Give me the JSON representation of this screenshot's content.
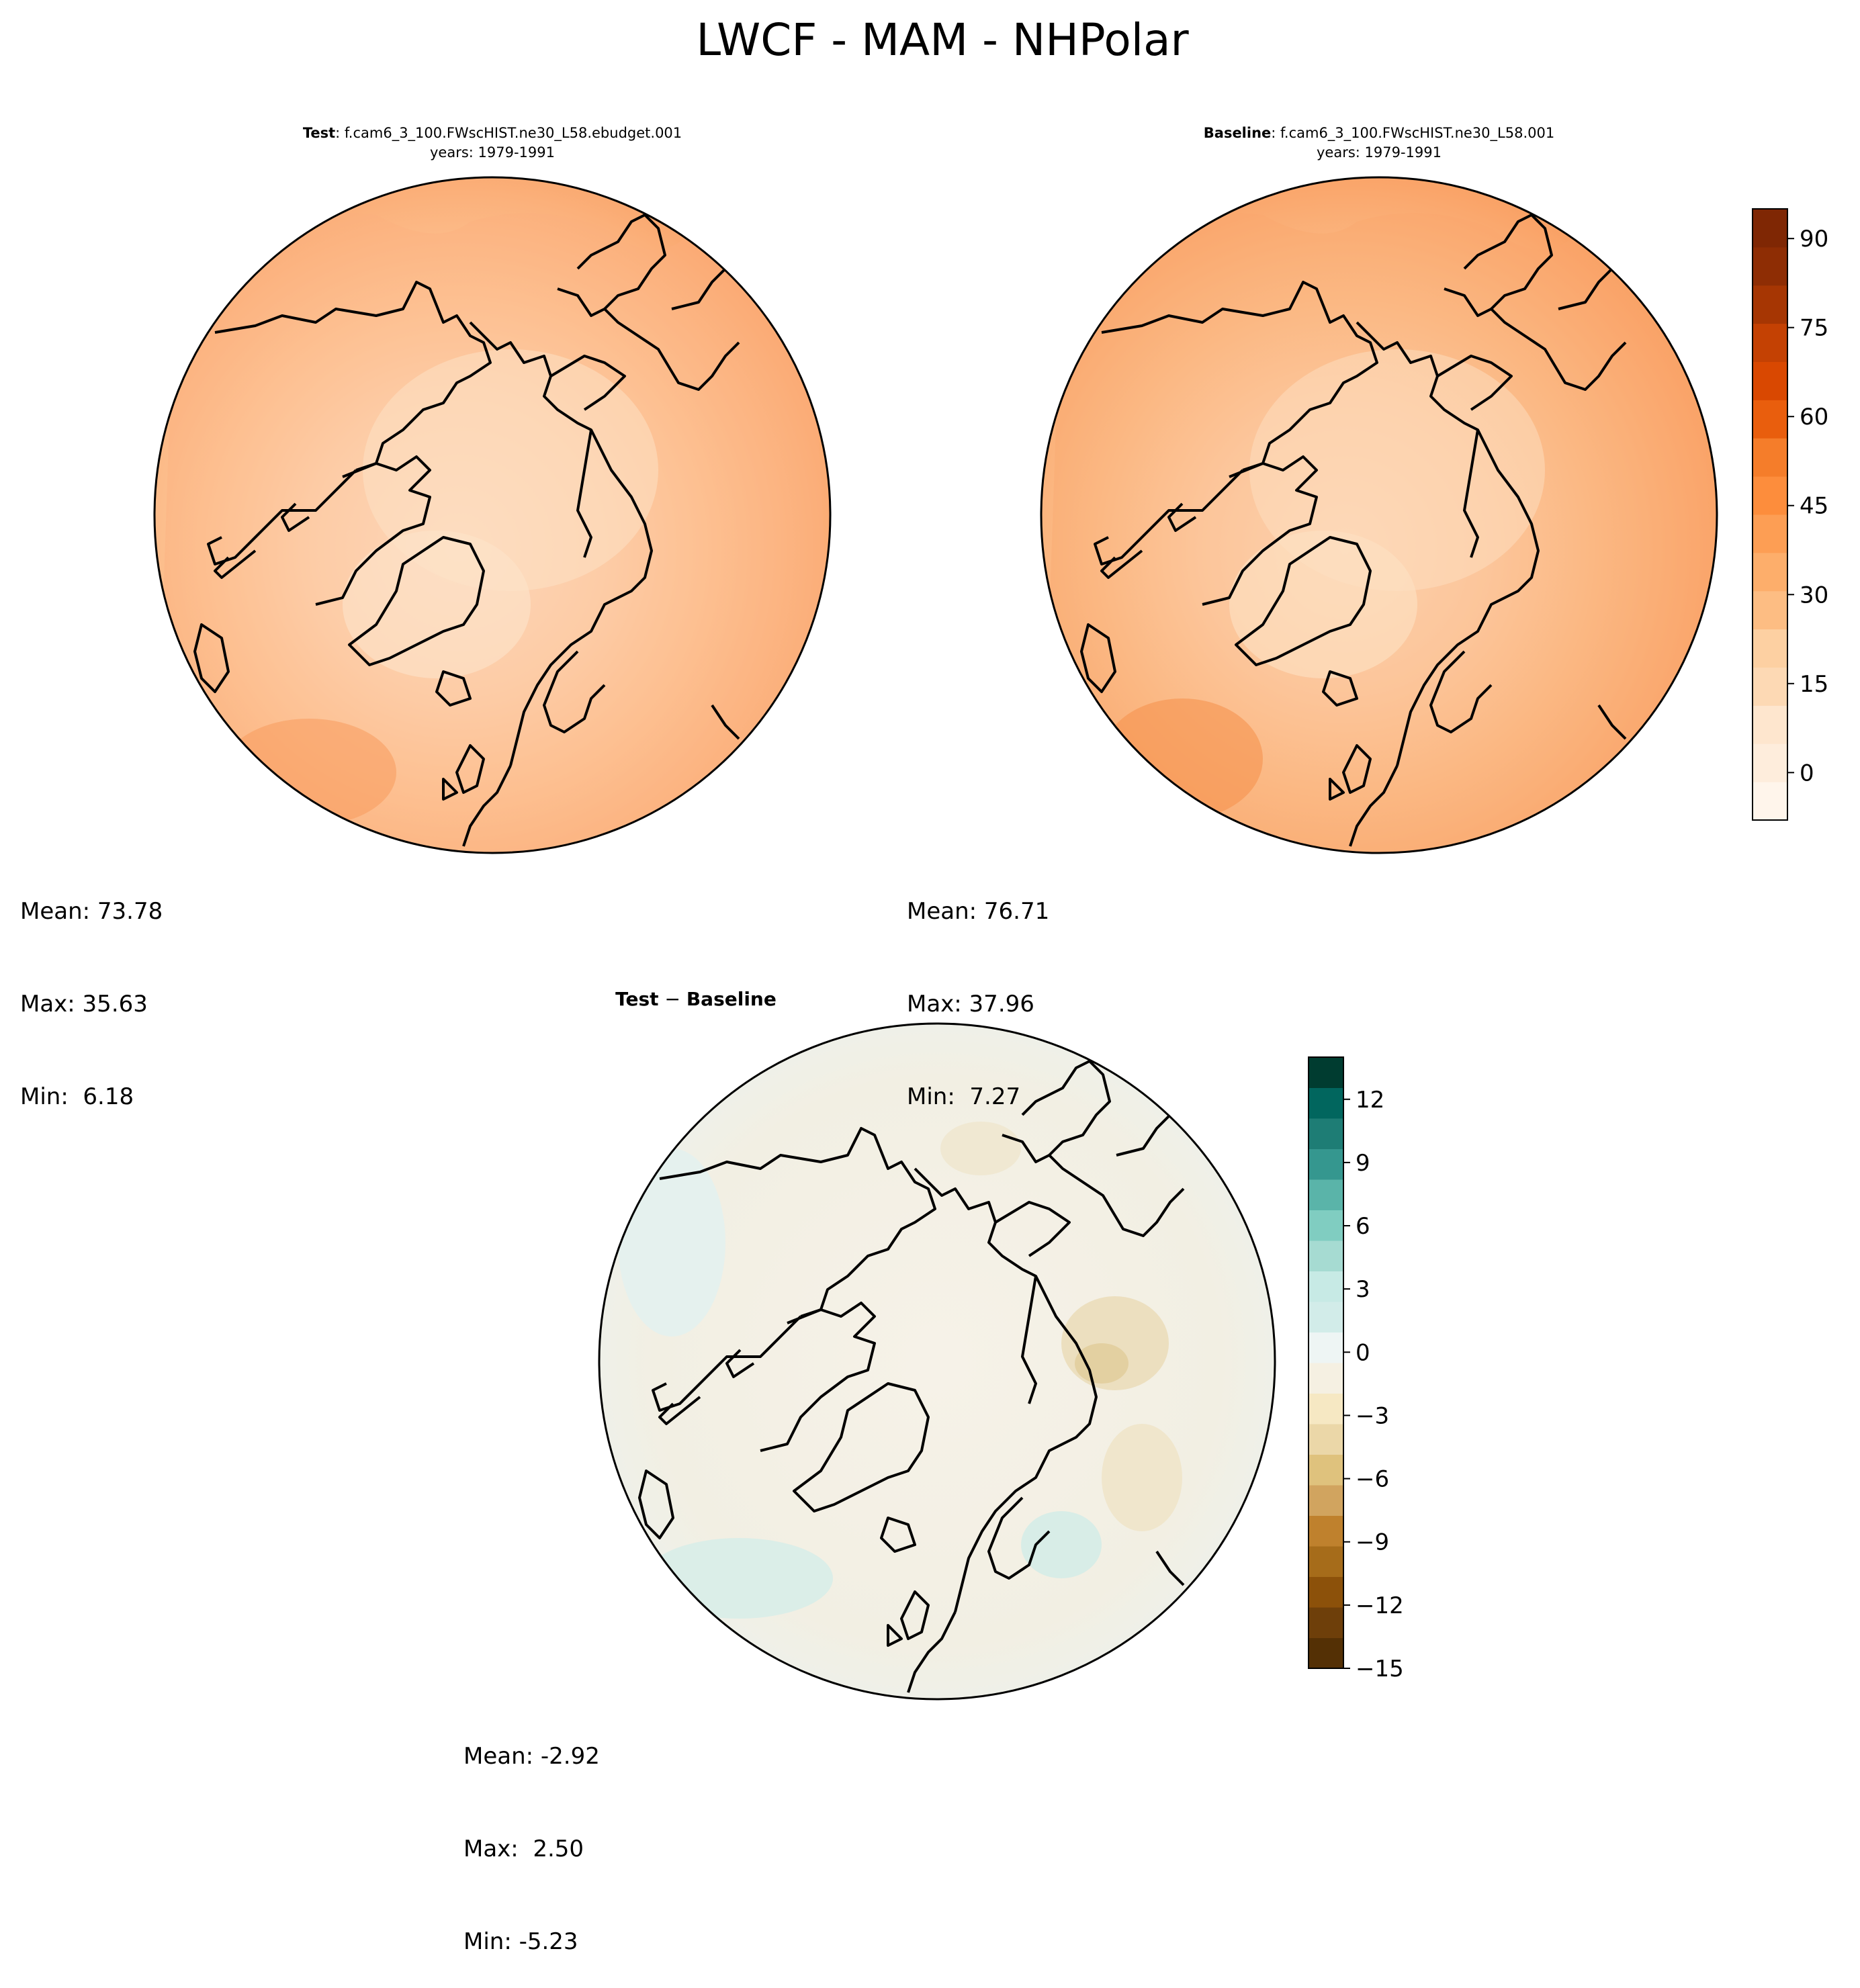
{
  "figure": {
    "title": "LWCF - MAM - NHPolar"
  },
  "panels": {
    "test": {
      "label": "Test",
      "case": ": f.cam6_3_100.FWscHIST.ne30_L58.ebudget.001",
      "years": "years: 1979-1991",
      "stats": {
        "mean": "Mean: 73.78",
        "max": "Max: 35.63",
        "min": "Min:  6.18"
      }
    },
    "baseline": {
      "label": "Baseline",
      "case": ": f.cam6_3_100.FWscHIST.ne30_L58.001",
      "years": "years: 1979-1991",
      "stats": {
        "mean": "Mean: 76.71",
        "max": "Max: 37.96",
        "min": "Min:  7.27"
      }
    },
    "diff": {
      "label_a": "Test",
      "label_sep": " − ",
      "label_b": "Baseline",
      "stats": {
        "mean": "Mean: -2.92",
        "max": "Max:  2.50",
        "min": "Min: -5.23"
      }
    }
  },
  "colors": {
    "orange_scale": [
      "#fff5eb",
      "#feeddc",
      "#fee6ce",
      "#fdd9b4",
      "#fdd0a2",
      "#fdbd83",
      "#fdae6b",
      "#fd9e54",
      "#fd8d3c",
      "#f57d2a",
      "#e95e0d",
      "#d94801",
      "#c44103",
      "#a63603",
      "#8e2d04",
      "#7f2704"
    ],
    "diff_scale_neg": [
      "#543005",
      "#6e3f0a",
      "#8c510a",
      "#a66c1a",
      "#bf812d",
      "#d1a45f",
      "#dfc27d",
      "#ebd7a8",
      "#f6e8c3",
      "#f5f0e2"
    ],
    "diff_scale_pos": [
      "#eef5f4",
      "#d2ece9",
      "#c7eae5",
      "#a6dbd2",
      "#80cdc1",
      "#5ab4a9",
      "#35978f",
      "#1e7d75",
      "#01665e",
      "#003c30"
    ],
    "coast": "#000000",
    "test_base": "#fbb483",
    "diff_base": "#f4f0e6"
  },
  "chart_data": [
    {
      "type": "heatmap",
      "panel": "test",
      "title": "Test: f.cam6_3_100.FWscHIST.ne30_L58.ebudget.001",
      "subtitle": "years: 1979-1991",
      "projection": "north polar stereographic",
      "stats": {
        "mean": 73.78,
        "max": 35.63,
        "min": 6.18
      },
      "colorbar": "shared with baseline"
    },
    {
      "type": "heatmap",
      "panel": "baseline",
      "title": "Baseline: f.cam6_3_100.FWscHIST.ne30_L58.001",
      "subtitle": "years: 1979-1991",
      "projection": "north polar stereographic",
      "stats": {
        "mean": 76.71,
        "max": 37.96,
        "min": 7.27
      },
      "colorbar": {
        "ticks": [
          90,
          75,
          60,
          45,
          30,
          15,
          0
        ],
        "range": [
          -8,
          95
        ],
        "colormap": "Oranges"
      }
    },
    {
      "type": "heatmap",
      "panel": "difference",
      "title": "Test − Baseline",
      "projection": "north polar stereographic",
      "stats": {
        "mean": -2.92,
        "max": 2.5,
        "min": -5.23
      },
      "colorbar": {
        "ticks": [
          12,
          9,
          6,
          3,
          0,
          -3,
          -6,
          -9,
          -12,
          -15
        ],
        "range": [
          -15,
          14
        ],
        "colormap": "BrBG"
      }
    }
  ],
  "colorbars": {
    "top": {
      "ticks": [
        "90",
        "75",
        "60",
        "45",
        "30",
        "15",
        "0"
      ],
      "values": [
        90,
        75,
        60,
        45,
        30,
        15,
        0
      ],
      "range": [
        -8,
        95
      ]
    },
    "diff": {
      "ticks": [
        "12",
        "9",
        "6",
        "3",
        "0",
        "−3",
        "−6",
        "−9",
        "−12",
        "−15"
      ],
      "values": [
        12,
        9,
        6,
        3,
        0,
        -3,
        -6,
        -9,
        -12,
        -15
      ],
      "range": [
        -15,
        14
      ]
    }
  }
}
